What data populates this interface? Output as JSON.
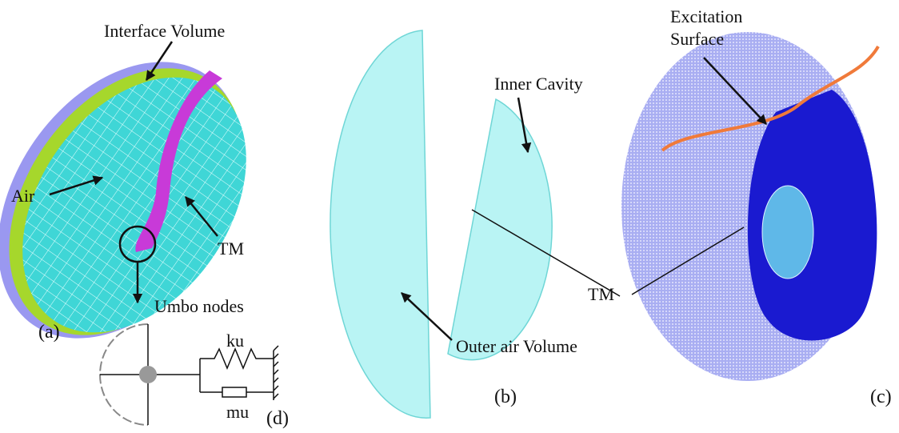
{
  "panels": {
    "a": {
      "caption": "(a)",
      "labels": [
        "Interface Volume",
        "Air",
        "TM",
        "Umbo nodes"
      ]
    },
    "b": {
      "caption": "(b)",
      "labels": [
        "Inner Cavity",
        "Outer air Volume"
      ]
    },
    "c": {
      "caption": "(c)",
      "labels": [
        "Excitation",
        "Surface",
        "TM"
      ]
    },
    "d": {
      "caption": "(d)",
      "labels": [
        "ku",
        "mu"
      ]
    }
  }
}
